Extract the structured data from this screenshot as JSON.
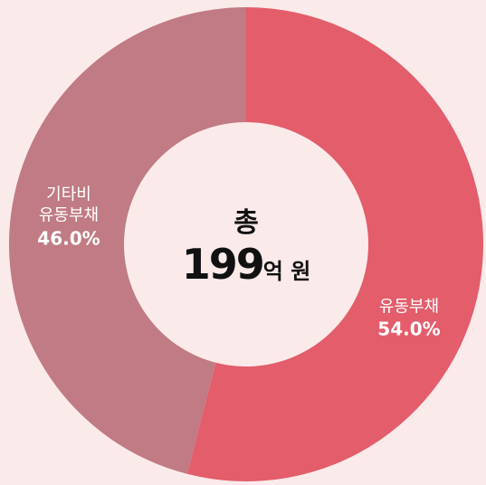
{
  "chart_data": {
    "type": "donut",
    "categories": [
      "유동부채",
      "기타비\n유동부채"
    ],
    "values": [
      54.0,
      46.0
    ],
    "value_labels": [
      "54.0%",
      "46.0%"
    ],
    "colors": [
      "#e35d6b",
      "#c07b84"
    ],
    "center_label": "총",
    "total_value": 199,
    "total_unit": "억 원"
  }
}
